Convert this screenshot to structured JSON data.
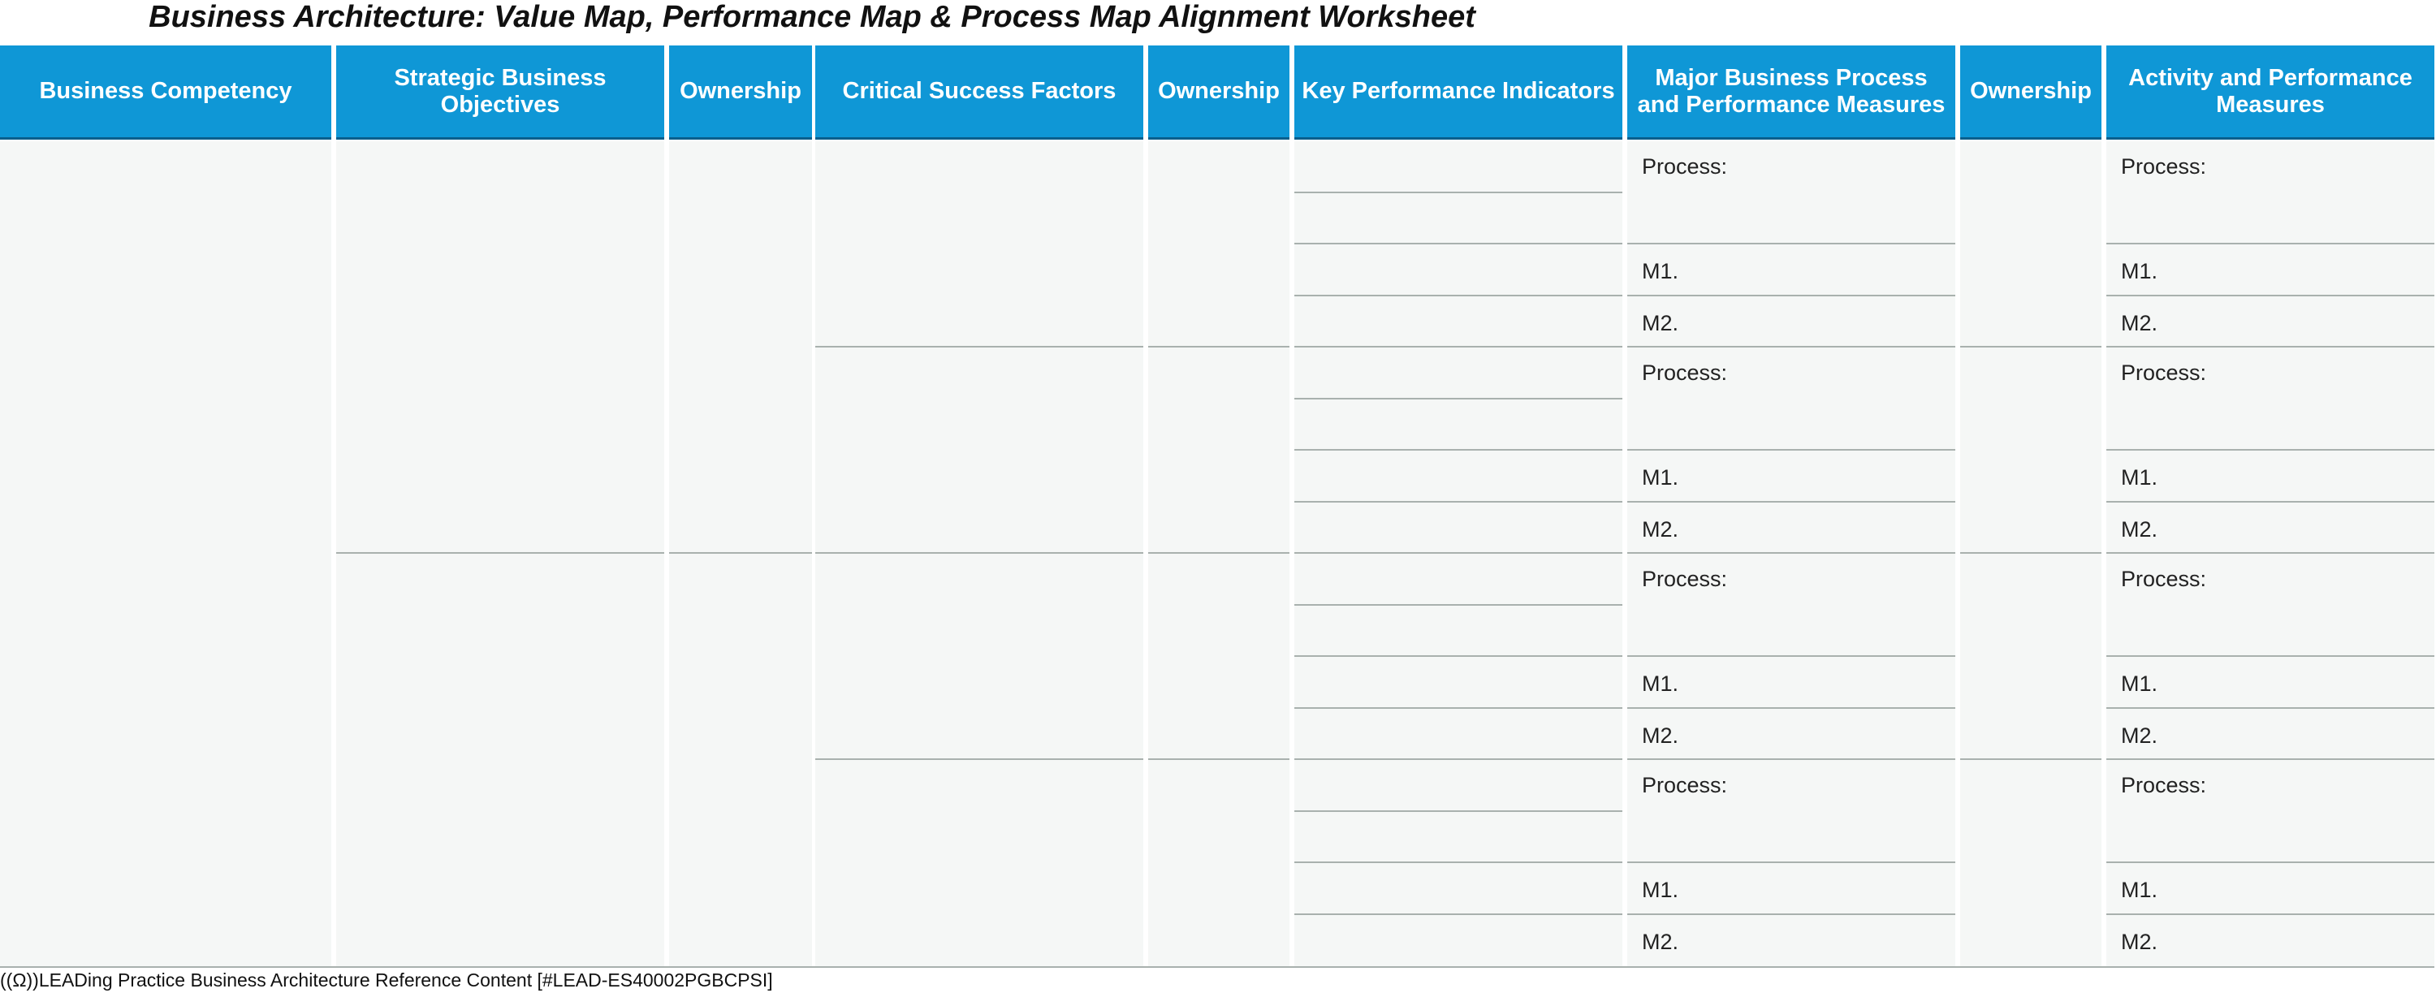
{
  "title": "Business Architecture: Value Map, Performance Map & Process Map Alignment Worksheet",
  "columns": [
    {
      "key": "competency",
      "label": "Business Competency"
    },
    {
      "key": "objectives",
      "label": "Strategic Business Objectives"
    },
    {
      "key": "ownership1",
      "label": "Ownership"
    },
    {
      "key": "csf",
      "label": "Critical Success Factors"
    },
    {
      "key": "ownership2",
      "label": "Ownership"
    },
    {
      "key": "kpi",
      "label": "Key Performance Indicators"
    },
    {
      "key": "process",
      "label": "Major Business Process and Performance Measures"
    },
    {
      "key": "ownership3",
      "label": "Ownership"
    },
    {
      "key": "activity",
      "label": "Activity and Performance Measures"
    }
  ],
  "row_labels": {
    "process": "Process:",
    "m1": "M1.",
    "m2": "M2."
  },
  "footer": "((Ω))LEADing Practice Business Architecture Reference Content [#LEAD-ES40002PGBCPSI]"
}
